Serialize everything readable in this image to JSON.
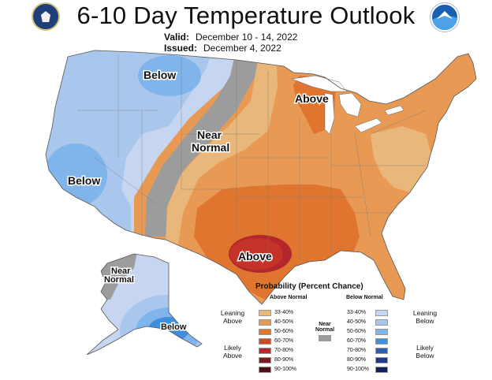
{
  "title": "6-10 Day Temperature Outlook",
  "valid_label": "Valid:",
  "valid_value": "December 10 - 14, 2022",
  "issued_label": "Issued:",
  "issued_value": "December 4, 2022",
  "map_labels": {
    "below_north": "Below",
    "below_west": "Below",
    "near_normal_line1": "Near",
    "near_normal_line2": "Normal",
    "above_north": "Above",
    "above_south": "Above",
    "ak_near_line1": "Near",
    "ak_near_line2": "Normal",
    "ak_below": "Below"
  },
  "legend": {
    "title": "Probability (Percent Chance)",
    "above_header": "Above Normal",
    "below_header": "Below Normal",
    "near_line1": "Near",
    "near_line2": "Normal",
    "leaning_above_1": "Leaning",
    "leaning_above_2": "Above",
    "likely_above_1": "Likely",
    "likely_above_2": "Above",
    "leaning_below_1": "Leaning",
    "leaning_below_2": "Below",
    "likely_below_1": "Likely",
    "likely_below_2": "Below",
    "above_rows": [
      {
        "range": "33-40%",
        "color": "#e9b77a"
      },
      {
        "range": "40-50%",
        "color": "#e89a55"
      },
      {
        "range": "50-60%",
        "color": "#e0752f"
      },
      {
        "range": "60-70%",
        "color": "#d04a25"
      },
      {
        "range": "70-80%",
        "color": "#b3262c"
      },
      {
        "range": "80-90%",
        "color": "#7d1a22"
      },
      {
        "range": "90-100%",
        "color": "#4e0f16"
      }
    ],
    "below_rows": [
      {
        "range": "33-40%",
        "color": "#c7d6f0"
      },
      {
        "range": "40-50%",
        "color": "#a9c7ec"
      },
      {
        "range": "50-60%",
        "color": "#7fb5ea"
      },
      {
        "range": "60-70%",
        "color": "#3f8fdc"
      },
      {
        "range": "70-80%",
        "color": "#2a5fb4"
      },
      {
        "range": "80-90%",
        "color": "#1f3a8a"
      },
      {
        "range": "90-100%",
        "color": "#16205c"
      }
    ],
    "near_color": "#9c9c9c"
  }
}
